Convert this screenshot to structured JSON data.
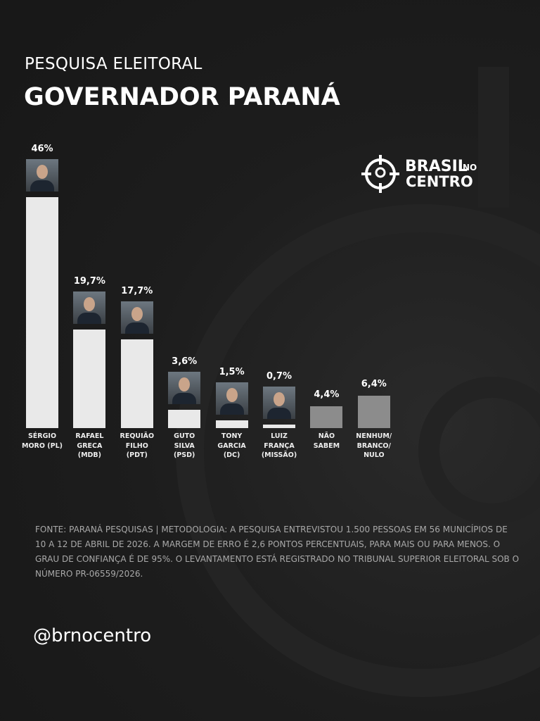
{
  "chart_data": {
    "type": "bar",
    "subtitle": "PESQUISA ELEITORAL",
    "title": "GOVERNADOR PARANÁ",
    "categories": [
      "SÉRGIO\nMORO (PL)",
      "RAFAEL\nGRECA\n(MDB)",
      "REQUIÃO\nFILHO\n(PDT)",
      "GUTO\nSILVA\n(PSD)",
      "TONY\nGARCIA\n(DC)",
      "LUIZ\nFRANÇA\n(MISSÃO)",
      "NÃO\nSABEM",
      "NENHUM/\nBRANCO/\nNULO"
    ],
    "values": [
      46,
      19.7,
      17.7,
      3.6,
      1.5,
      0.7,
      4.4,
      6.4
    ],
    "value_labels": [
      "46%",
      "19,7%",
      "17,7%",
      "3,6%",
      "1,5%",
      "0,7%",
      "4,4%",
      "6,4%"
    ],
    "colors": [
      "#e9e9e9",
      "#e9e9e9",
      "#e9e9e9",
      "#e9e9e9",
      "#e9e9e9",
      "#e9e9e9",
      "#8c8c8c",
      "#8c8c8c"
    ],
    "note": "FONTE: PARANÁ PESQUISAS | METODOLOGIA: A PESQUISA ENTREVISTOU 1.500 PESSOAS EM 56 MUNICÍPIOS DE 10 A 12 DE ABRIL DE 2026. A MARGEM DE ERRO É 2,6 PONTOS PERCENTUAIS, PARA MAIS OU PARA MENOS. O GRAU DE CONFIANÇA É DE 95%. O LEVANTAMENTO ESTÁ REGISTRADO NO TRIBUNAL SUPERIOR ELEITORAL SOB O NÚMERO PR-06559/2026.",
    "handle": "@brnocentro",
    "logo": {
      "line1": "BRASIL",
      "small": "NO",
      "line2": "CENTRO"
    }
  }
}
